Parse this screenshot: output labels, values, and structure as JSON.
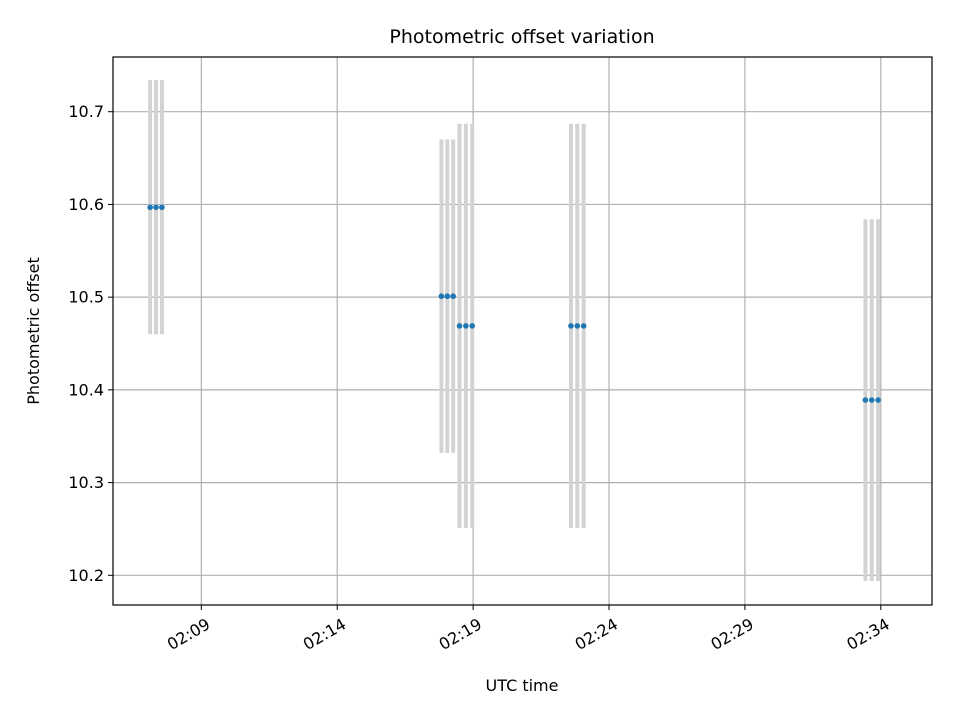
{
  "chart_data": {
    "type": "scatter",
    "title": "Photometric offset variation",
    "xlabel": "UTC time",
    "ylabel": "Photometric offset",
    "x_ticks": [
      "02:09",
      "02:14",
      "02:19",
      "02:24",
      "02:29",
      "02:34"
    ],
    "y_ticks": [
      "10.2",
      "10.3",
      "10.4",
      "10.5",
      "10.6",
      "10.7"
    ],
    "xlim": [
      "02:05:45",
      "02:35:53"
    ],
    "ylim": [
      10.168,
      10.759
    ],
    "grid": true,
    "legend": "none",
    "colors": {
      "points": "#1f77b4",
      "errorbars": "#d3d3d3"
    },
    "series": [
      {
        "x": [
          "02:07:07",
          "02:07:20",
          "02:07:33",
          "02:17:50",
          "02:18:03",
          "02:18:16",
          "02:18:30",
          "02:18:44",
          "02:18:58",
          "02:22:36",
          "02:22:50",
          "02:23:04",
          "02:33:26",
          "02:33:40",
          "02:33:54"
        ],
        "y": [
          10.597,
          10.597,
          10.597,
          10.501,
          10.501,
          10.501,
          10.469,
          10.469,
          10.469,
          10.469,
          10.469,
          10.469,
          10.389,
          10.389,
          10.389
        ],
        "yerr": [
          0.137,
          0.137,
          0.137,
          0.169,
          0.169,
          0.169,
          0.218,
          0.218,
          0.218,
          0.218,
          0.218,
          0.218,
          0.195,
          0.195,
          0.195
        ]
      }
    ]
  }
}
